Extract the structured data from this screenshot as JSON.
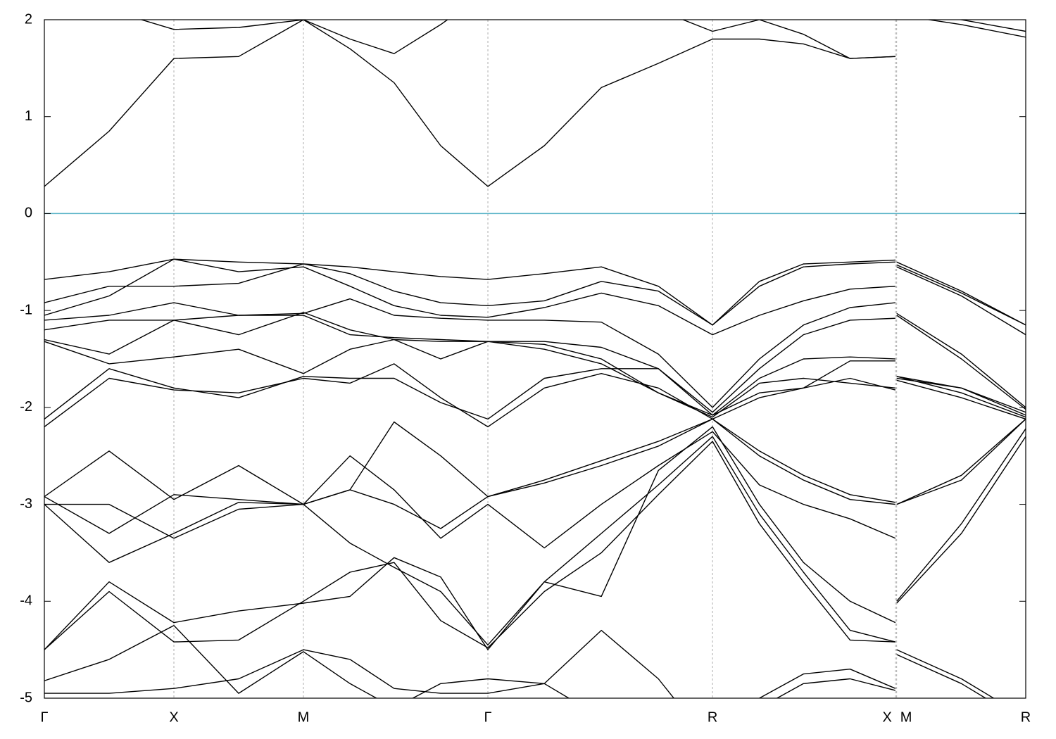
{
  "chart_data": {
    "type": "line",
    "color": "#000000",
    "fermi_level": 0,
    "fermi_color": "#5ab4c8",
    "grid": true,
    "x": [
      0,
      0.25,
      0.5,
      0.75,
      1.0,
      1.18,
      1.35,
      1.53,
      1.712,
      1.93,
      2.15,
      2.37,
      2.579,
      2.76,
      2.93,
      3.11,
      3.285,
      3.287,
      3.29,
      3.54,
      3.788
    ],
    "xlim": [
      0,
      3.788
    ],
    "xticks": [
      {
        "value": 0,
        "label": "Γ"
      },
      {
        "value": 0.5,
        "label": "X"
      },
      {
        "value": 1.0,
        "label": "M"
      },
      {
        "value": 1.712,
        "label": "Γ"
      },
      {
        "value": 2.579,
        "label": "R"
      },
      {
        "value": 3.285,
        "label": "X"
      },
      {
        "value": 3.29,
        "label": "M"
      },
      {
        "value": 3.788,
        "label": "R"
      }
    ],
    "ylim": [
      -5,
      2
    ],
    "yticks": [
      -5,
      -4,
      -3,
      -2,
      -1,
      0,
      1,
      2
    ],
    "series": [
      {
        "values": [
          0.28,
          0.85,
          1.6,
          1.62,
          2.0,
          1.7,
          1.35,
          0.7,
          0.28,
          0.7,
          1.3,
          1.55,
          1.8,
          1.8,
          1.75,
          1.6,
          1.62,
          null,
          2.05,
          1.95,
          1.82
        ]
      },
      {
        "values": [
          2.5,
          2.1,
          1.9,
          1.92,
          2.0,
          1.8,
          1.65,
          1.95,
          2.3,
          2.3,
          2.2,
          2.1,
          1.88,
          2.0,
          1.85,
          1.6,
          1.62,
          null,
          2.1,
          2.0,
          1.88
        ]
      },
      {
        "values": [
          -0.68,
          -0.6,
          -0.47,
          -0.5,
          -0.52,
          -0.55,
          -0.6,
          -0.65,
          -0.68,
          -0.62,
          -0.55,
          -0.75,
          -1.15,
          -0.7,
          -0.52,
          -0.5,
          -0.48,
          null,
          -0.5,
          -0.8,
          -1.15
        ]
      },
      {
        "values": [
          -0.92,
          -0.75,
          -0.75,
          -0.72,
          -0.52,
          -0.62,
          -0.8,
          -0.92,
          -0.95,
          -0.9,
          -0.7,
          -0.8,
          -1.15,
          -0.75,
          -0.55,
          -0.52,
          -0.5,
          null,
          -0.53,
          -0.82,
          -1.15
        ]
      },
      {
        "values": [
          -1.05,
          -0.85,
          -0.47,
          -0.6,
          -0.55,
          -0.75,
          -0.95,
          -1.05,
          -1.07,
          -0.97,
          -0.82,
          -0.95,
          -1.25,
          -1.05,
          -0.9,
          -0.78,
          -0.75,
          null,
          -0.55,
          -0.85,
          -1.25
        ]
      },
      {
        "values": [
          -1.1,
          -1.05,
          -0.92,
          -1.05,
          -1.03,
          -0.88,
          -1.05,
          -1.08,
          -1.1,
          -1.1,
          -1.12,
          -1.45,
          -2.0,
          -1.5,
          -1.15,
          -0.97,
          -0.92,
          null,
          -1.03,
          -1.45,
          -2.0
        ]
      },
      {
        "values": [
          -1.2,
          -1.1,
          -1.1,
          -1.05,
          -1.05,
          -1.25,
          -1.28,
          -1.3,
          -1.32,
          -1.32,
          -1.38,
          -1.6,
          -2.05,
          -1.6,
          -1.25,
          -1.1,
          -1.08,
          null,
          -1.05,
          -1.5,
          -2.02
        ]
      },
      {
        "values": [
          -1.3,
          -1.45,
          -1.1,
          -1.25,
          -1.02,
          -1.2,
          -1.3,
          -1.32,
          -1.32,
          -1.35,
          -1.5,
          -1.85,
          -2.08,
          -1.7,
          -1.5,
          -1.48,
          -1.5,
          null,
          -1.68,
          -1.8,
          -2.05
        ]
      },
      {
        "values": [
          -1.32,
          -1.55,
          -1.48,
          -1.4,
          -1.65,
          -1.4,
          -1.3,
          -1.5,
          -1.32,
          -1.4,
          -1.55,
          -1.85,
          -2.1,
          -1.75,
          -1.7,
          -1.75,
          -1.8,
          null,
          -1.7,
          -1.8,
          -2.08
        ]
      },
      {
        "values": [
          -2.12,
          -1.6,
          -1.8,
          -1.9,
          -1.68,
          -1.7,
          -1.7,
          -1.95,
          -2.12,
          -1.7,
          -1.6,
          -1.6,
          -2.08,
          -1.85,
          -1.8,
          -1.52,
          -1.52,
          null,
          -1.68,
          -1.85,
          -2.1
        ]
      },
      {
        "values": [
          -2.2,
          -1.7,
          -1.82,
          -1.85,
          -1.7,
          -1.75,
          -1.55,
          -1.9,
          -2.2,
          -1.8,
          -1.65,
          -1.8,
          -2.12,
          -1.9,
          -1.8,
          -1.7,
          -1.82,
          null,
          -1.72,
          -1.9,
          -2.12
        ]
      },
      {
        "values": [
          -2.92,
          -2.45,
          -2.95,
          -2.6,
          -3.0,
          -2.85,
          -2.15,
          -2.5,
          -2.92,
          -2.75,
          -2.55,
          -2.35,
          -2.12,
          -2.45,
          -2.7,
          -2.9,
          -2.98,
          null,
          -3.0,
          -2.75,
          -2.12
        ]
      },
      {
        "values": [
          -2.92,
          -3.3,
          -2.9,
          -2.95,
          -3.0,
          -2.85,
          -3.0,
          -3.25,
          -2.92,
          -2.78,
          -2.6,
          -2.4,
          -2.12,
          -2.5,
          -2.75,
          -2.95,
          -3.0,
          null,
          -3.0,
          -2.7,
          -2.12
        ]
      },
      {
        "values": [
          -3.0,
          -3.6,
          -3.3,
          -2.98,
          -3.0,
          -2.5,
          -2.85,
          -3.35,
          -3.0,
          -3.45,
          -3.0,
          -2.6,
          -2.25,
          -2.8,
          -3.0,
          -3.15,
          -3.35,
          null,
          -4.02,
          -3.3,
          -2.3
        ]
      },
      {
        "values": [
          -3.0,
          -3.0,
          -3.35,
          -3.05,
          -3.0,
          -3.4,
          -3.65,
          -3.9,
          -4.45,
          -3.8,
          -3.95,
          -2.65,
          -2.2,
          -3.0,
          -3.6,
          -4.0,
          -4.22,
          null,
          -4.0,
          -3.2,
          -2.22
        ]
      },
      {
        "values": [
          -4.5,
          -3.8,
          -4.22,
          -4.1,
          -4.02,
          -3.95,
          -3.55,
          -3.75,
          -4.5,
          -3.8,
          -3.3,
          -2.8,
          -2.3,
          -3.1,
          -3.7,
          -4.3,
          -4.42,
          null,
          -4.5,
          -4.8,
          -5.2
        ]
      },
      {
        "values": [
          -4.5,
          -3.9,
          -4.42,
          -4.4,
          -4.0,
          -3.7,
          -3.6,
          -4.2,
          -4.48,
          -3.9,
          -3.5,
          -2.9,
          -2.35,
          -3.2,
          -3.8,
          -4.4,
          -4.42,
          null,
          -4.55,
          -4.85,
          -5.25
        ]
      },
      {
        "values": [
          -4.82,
          -4.6,
          -4.25,
          -4.95,
          -4.52,
          -4.85,
          -5.1,
          -4.85,
          -4.8,
          -4.85,
          -4.3,
          -4.8,
          -5.5,
          -5.0,
          -4.75,
          -4.7,
          -4.9,
          null,
          null,
          null,
          null
        ]
      },
      {
        "values": [
          -4.95,
          -4.95,
          -4.9,
          -4.8,
          -4.5,
          -4.6,
          -4.9,
          -4.95,
          -4.95,
          -4.85,
          -5.2,
          -5.5,
          -5.5,
          -5.1,
          -4.85,
          -4.8,
          -4.92,
          null,
          null,
          null,
          null
        ]
      }
    ]
  }
}
